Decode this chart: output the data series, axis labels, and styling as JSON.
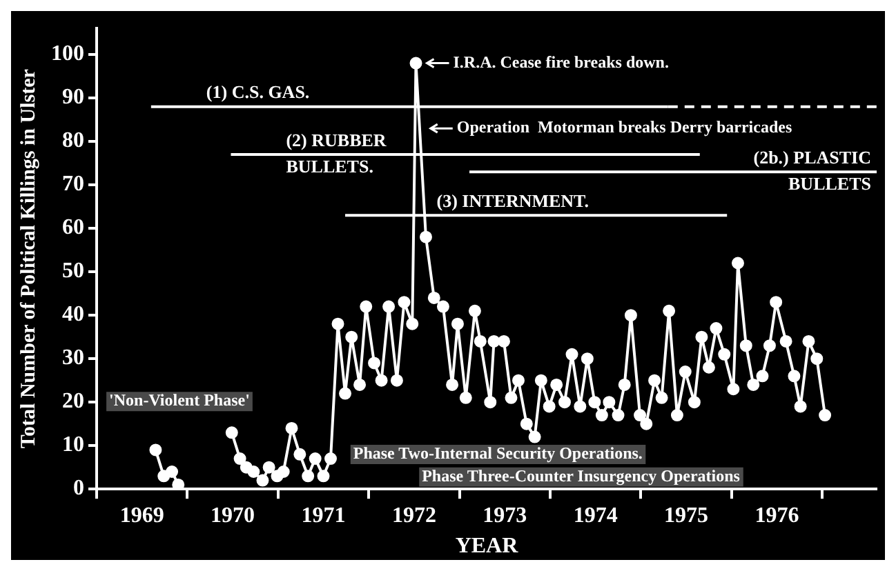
{
  "chart_data": {
    "type": "line",
    "xlabel": "YEAR",
    "ylabel": "Total Number of Political Killings in Ulster",
    "xlim": [
      1969,
      1977.6
    ],
    "ylim": [
      0,
      106
    ],
    "yticks": [
      0,
      10,
      20,
      30,
      40,
      50,
      60,
      70,
      80,
      90,
      100
    ],
    "xticks": [
      {
        "value": 1969,
        "label": null
      },
      {
        "value": 1969.5,
        "label": "1969"
      },
      {
        "value": 1970,
        "label": null
      },
      {
        "value": 1970.5,
        "label": "1970"
      },
      {
        "value": 1971,
        "label": null
      },
      {
        "value": 1971.5,
        "label": "1971"
      },
      {
        "value": 1972,
        "label": null
      },
      {
        "value": 1972.5,
        "label": "1972"
      },
      {
        "value": 1973,
        "label": null
      },
      {
        "value": 1973.5,
        "label": "1973"
      },
      {
        "value": 1974,
        "label": null
      },
      {
        "value": 1974.5,
        "label": "1974"
      },
      {
        "value": 1975,
        "label": null
      },
      {
        "value": 1975.5,
        "label": "1975"
      },
      {
        "value": 1976,
        "label": null
      },
      {
        "value": 1976.5,
        "label": "1976"
      },
      {
        "value": 1977,
        "label": null
      }
    ],
    "grid": false,
    "legend": false,
    "marker": "circle",
    "line_style": "solid",
    "series": [
      {
        "color": "#ffffff",
        "x": [
          1969.65,
          1969.74,
          1969.83,
          1969.9,
          1970.2,
          1970.49,
          1970.58,
          1970.65,
          1970.73,
          1970.83,
          1970.9,
          1970.99,
          1971.06,
          1971.15,
          1971.24,
          1971.33,
          1971.41,
          1971.5,
          1971.58,
          1971.66,
          1971.74,
          1971.81,
          1971.9,
          1971.97,
          1972.06,
          1972.14,
          1972.22,
          1972.31,
          1972.39,
          1972.48,
          1972.52,
          1972.63,
          1972.72,
          1972.82,
          1972.92,
          1972.98,
          1973.07,
          1973.17,
          1973.23,
          1973.34,
          1973.38,
          1973.49,
          1973.57,
          1973.65,
          1973.74,
          1973.83,
          1973.9,
          1973.99,
          1974.07,
          1974.16,
          1974.24,
          1974.33,
          1974.41,
          1974.49,
          1974.57,
          1974.65,
          1974.75,
          1974.82,
          1974.89,
          1974.99,
          1975.06,
          1975.15,
          1975.23,
          1975.31,
          1975.4,
          1975.49,
          1975.59,
          1975.67,
          1975.75,
          1975.83,
          1975.92,
          1976.02,
          1976.07,
          1976.16,
          1976.24,
          1976.34,
          1976.42,
          1976.49,
          1976.6,
          1976.69,
          1976.76,
          1976.85,
          1976.94,
          1977.03
        ],
        "values": [
          9,
          3,
          4,
          1,
          null,
          13,
          7,
          5,
          4,
          2,
          5,
          3,
          4,
          14,
          8,
          3,
          7,
          3,
          7,
          38,
          22,
          35,
          24,
          42,
          29,
          25,
          42,
          25,
          43,
          38,
          98,
          58,
          44,
          42,
          24,
          38,
          21,
          41,
          34,
          20,
          34,
          34,
          21,
          25,
          15,
          12,
          25,
          19,
          24,
          20,
          31,
          19,
          30,
          20,
          17,
          20,
          17,
          24,
          40,
          17,
          15,
          25,
          21,
          41,
          17,
          27,
          20,
          35,
          28,
          37,
          31,
          23,
          52,
          33,
          24,
          26,
          33,
          43,
          34,
          26,
          19,
          34,
          30,
          17
        ]
      },
      {
        "name": "(1) C.S. GAS.",
        "color": "#ffffff",
        "marker": "none",
        "x": [
          1969.6,
          1975.3
        ],
        "values": [
          88,
          88
        ]
      },
      {
        "color": "#ffffff",
        "marker": "none",
        "line_style": "dashed",
        "x": [
          1975.3,
          1977.6
        ],
        "values": [
          88,
          88
        ]
      },
      {
        "name": "(2) RUBBER BULLETS.",
        "color": "#ffffff",
        "marker": "none",
        "x": [
          1970.48,
          1975.65
        ],
        "values": [
          77,
          77
        ]
      },
      {
        "name": "(2b.) PLASTIC BULLETS",
        "color": "#ffffff",
        "marker": "none",
        "x": [
          1973.11,
          1977.6
        ],
        "values": [
          73,
          73
        ]
      },
      {
        "name": "(3) INTERNMENT.",
        "color": "#ffffff",
        "marker": "none",
        "x": [
          1971.74,
          1975.95
        ],
        "values": [
          63,
          63
        ]
      }
    ],
    "annotations": [
      {
        "text": "I.R.A. Cease fire breaks down.",
        "x": 1972.52,
        "y": 98
      },
      {
        "text": "Operation  Motorman breaks Derry barricades",
        "x": 1972.56,
        "y": 83
      },
      "'Non-Violent Phase'",
      "Phase Two-Internal Security Operations.",
      "Phase Three-Counter Insurgency Operations"
    ]
  }
}
